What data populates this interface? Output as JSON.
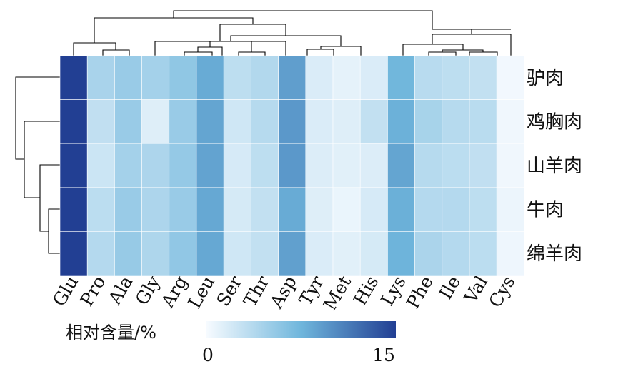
{
  "chart_data": {
    "type": "heatmap",
    "columns": [
      "Glu",
      "Pro",
      "Ala",
      "Gly",
      "Arg",
      "Leu",
      "Ser",
      "Thr",
      "Asp",
      "Tyr",
      "Met",
      "His",
      "Lys",
      "Phe",
      "Ile",
      "Val",
      "Cys"
    ],
    "rows": [
      "驴肉",
      "鸡胸肉",
      "山羊肉",
      "牛肉",
      "绵羊肉"
    ],
    "values": [
      [
        15.0,
        4.3,
        5.2,
        4.6,
        5.7,
        8.2,
        3.2,
        3.8,
        9.0,
        1.6,
        1.0,
        1.6,
        7.4,
        3.5,
        3.2,
        2.9,
        0.3
      ],
      [
        15.2,
        3.0,
        5.2,
        1.4,
        5.2,
        8.6,
        2.2,
        3.6,
        9.4,
        1.6,
        1.4,
        2.9,
        7.8,
        4.4,
        3.6,
        3.4,
        0.4
      ],
      [
        15.3,
        2.4,
        4.6,
        4.1,
        5.4,
        8.7,
        1.8,
        3.2,
        9.4,
        1.5,
        1.2,
        1.5,
        8.6,
        3.6,
        3.3,
        3.0,
        0.4
      ],
      [
        15.2,
        3.3,
        5.2,
        4.1,
        5.2,
        8.4,
        1.9,
        2.9,
        8.2,
        1.4,
        0.7,
        1.8,
        7.9,
        3.7,
        3.7,
        3.2,
        0.6
      ],
      [
        15.1,
        3.7,
        5.3,
        4.0,
        5.6,
        8.4,
        2.2,
        2.9,
        8.9,
        1.6,
        1.2,
        1.9,
        7.6,
        4.2,
        3.7,
        3.3,
        0.5
      ]
    ],
    "colorbar": {
      "label": "相对含量/%",
      "min": 0,
      "max": 15,
      "min_label": "0",
      "max_label": "15",
      "colors": [
        "#f7fbff",
        "#6fb6dc",
        "#223f93"
      ]
    }
  }
}
